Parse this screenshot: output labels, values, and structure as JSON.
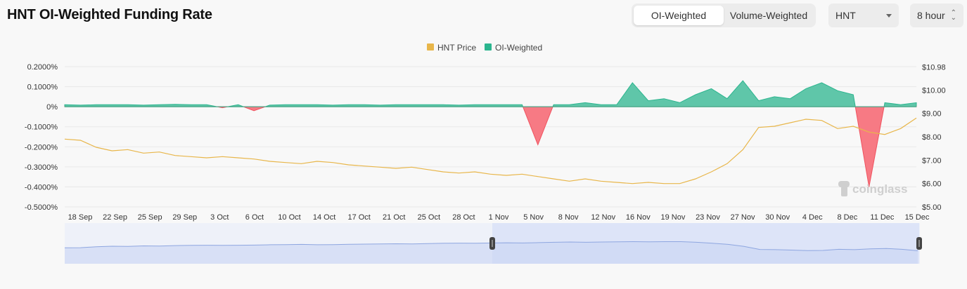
{
  "title": "HNT OI-Weighted Funding Rate",
  "controls": {
    "weighting_options": [
      "OI-Weighted",
      "Volume-Weighted"
    ],
    "weighting_selected": "OI-Weighted",
    "coin_selected": "HNT",
    "interval_selected": "8 hour"
  },
  "watermark": "coinglass",
  "colors": {
    "price": "#e8b64a",
    "positive": "#2bb58e",
    "negative": "#f0525f",
    "navigator": "#8ea6e0"
  },
  "chart_data": {
    "type": "area",
    "x_tick_labels": [
      "18 Sep",
      "22 Sep",
      "25 Sep",
      "29 Sep",
      "3 Oct",
      "6 Oct",
      "10 Oct",
      "14 Oct",
      "17 Oct",
      "21 Oct",
      "25 Oct",
      "28 Oct",
      "1 Nov",
      "5 Nov",
      "8 Nov",
      "12 Nov",
      "16 Nov",
      "19 Nov",
      "23 Nov",
      "27 Nov",
      "30 Nov",
      "4 Dec",
      "8 Dec",
      "11 Dec",
      "15 Dec"
    ],
    "y_left": {
      "ticks": [
        "0.2000%",
        "0.1000%",
        "0%",
        "-0.1000%",
        "-0.2000%",
        "-0.3000%",
        "-0.4000%",
        "-0.5000%"
      ],
      "range": [
        -0.5,
        0.2
      ],
      "unit": "%"
    },
    "y_right": {
      "ticks": [
        "$10.98",
        "$10.00",
        "$9.00",
        "$8.00",
        "$7.00",
        "$6.00",
        "$5.00"
      ],
      "range": [
        5.0,
        11.0
      ],
      "unit": "$"
    },
    "legend_position": "top-center",
    "series": [
      {
        "name": "HNT Price",
        "axis": "right",
        "color": "#e8b64a",
        "values": [
          [
            0,
            7.9
          ],
          [
            1,
            7.85
          ],
          [
            2,
            7.55
          ],
          [
            3,
            7.4
          ],
          [
            4,
            7.45
          ],
          [
            5,
            7.3
          ],
          [
            6,
            7.35
          ],
          [
            7,
            7.2
          ],
          [
            8,
            7.15
          ],
          [
            9,
            7.1
          ],
          [
            10,
            7.15
          ],
          [
            11,
            7.1
          ],
          [
            12,
            7.05
          ],
          [
            13,
            6.95
          ],
          [
            14,
            6.9
          ],
          [
            15,
            6.85
          ],
          [
            16,
            6.95
          ],
          [
            17,
            6.9
          ],
          [
            18,
            6.8
          ],
          [
            19,
            6.75
          ],
          [
            20,
            6.7
          ],
          [
            21,
            6.65
          ],
          [
            22,
            6.7
          ],
          [
            23,
            6.6
          ],
          [
            24,
            6.5
          ],
          [
            25,
            6.45
          ],
          [
            26,
            6.5
          ],
          [
            27,
            6.4
          ],
          [
            28,
            6.35
          ],
          [
            29,
            6.4
          ],
          [
            30,
            6.3
          ],
          [
            31,
            6.2
          ],
          [
            32,
            6.1
          ],
          [
            33,
            6.2
          ],
          [
            34,
            6.1
          ],
          [
            35,
            6.05
          ],
          [
            36,
            6.0
          ],
          [
            37,
            6.05
          ],
          [
            38,
            6.0
          ],
          [
            39,
            6.0
          ],
          [
            40,
            6.2
          ],
          [
            41,
            6.5
          ],
          [
            42,
            6.85
          ],
          [
            43,
            7.45
          ],
          [
            44,
            8.4
          ],
          [
            45,
            8.45
          ],
          [
            46,
            8.6
          ],
          [
            47,
            8.75
          ],
          [
            48,
            8.7
          ],
          [
            49,
            8.35
          ],
          [
            50,
            8.45
          ],
          [
            51,
            8.2
          ],
          [
            52,
            8.1
          ],
          [
            53,
            8.35
          ],
          [
            54,
            8.8
          ]
        ]
      },
      {
        "name": "OI-Weighted",
        "axis": "left",
        "color_positive": "#2bb58e",
        "color_negative": "#f0525f",
        "values": [
          [
            0,
            0.01
          ],
          [
            1,
            0.008
          ],
          [
            2,
            0.01
          ],
          [
            3,
            0.01
          ],
          [
            4,
            0.01
          ],
          [
            5,
            0.008
          ],
          [
            6,
            0.01
          ],
          [
            7,
            0.012
          ],
          [
            8,
            0.01
          ],
          [
            9,
            0.01
          ],
          [
            10,
            -0.005
          ],
          [
            11,
            0.01
          ],
          [
            12,
            -0.02
          ],
          [
            13,
            0.008
          ],
          [
            14,
            0.01
          ],
          [
            15,
            0.01
          ],
          [
            16,
            0.01
          ],
          [
            17,
            0.008
          ],
          [
            18,
            0.01
          ],
          [
            19,
            0.01
          ],
          [
            20,
            0.008
          ],
          [
            21,
            0.01
          ],
          [
            22,
            0.01
          ],
          [
            23,
            0.01
          ],
          [
            24,
            0.01
          ],
          [
            25,
            0.008
          ],
          [
            26,
            0.01
          ],
          [
            27,
            0.01
          ],
          [
            28,
            0.01
          ],
          [
            29,
            0.01
          ],
          [
            30,
            -0.19
          ],
          [
            31,
            0.01
          ],
          [
            32,
            0.01
          ],
          [
            33,
            0.02
          ],
          [
            34,
            0.01
          ],
          [
            35,
            0.01
          ],
          [
            36,
            0.12
          ],
          [
            37,
            0.03
          ],
          [
            38,
            0.04
          ],
          [
            39,
            0.02
          ],
          [
            40,
            0.06
          ],
          [
            41,
            0.09
          ],
          [
            42,
            0.04
          ],
          [
            43,
            0.13
          ],
          [
            44,
            0.03
          ],
          [
            45,
            0.05
          ],
          [
            46,
            0.04
          ],
          [
            47,
            0.09
          ],
          [
            48,
            0.12
          ],
          [
            49,
            0.08
          ],
          [
            50,
            0.06
          ],
          [
            51,
            -0.4
          ],
          [
            52,
            0.02
          ],
          [
            53,
            0.01
          ],
          [
            54,
            0.02
          ]
        ]
      }
    ],
    "navigator": {
      "range_start_label": "1 Nov",
      "range_end_label": "15 Dec"
    }
  }
}
